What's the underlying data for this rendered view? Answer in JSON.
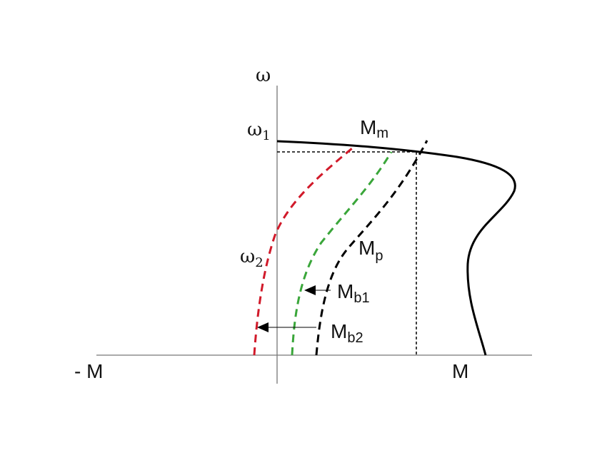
{
  "labels": {
    "omega_axis": "ω",
    "omega1": "ω",
    "omega1_sub": "1",
    "omega2": "ω",
    "omega2_sub": "2",
    "neg_m": "- M",
    "pos_m": "M",
    "mm": "M",
    "mm_sub": "m",
    "mp": "M",
    "mp_sub": "p",
    "mb1": "M",
    "mb1_sub": "b1",
    "mb2": "M",
    "mb2_sub": "b2"
  },
  "colors": {
    "axis": "#777777",
    "motor_curve": "#000000",
    "mp_curve": "#000000",
    "mb1_curve": "#3aa63a",
    "mb2_curve": "#d11a2a",
    "guide": "#000000"
  }
}
